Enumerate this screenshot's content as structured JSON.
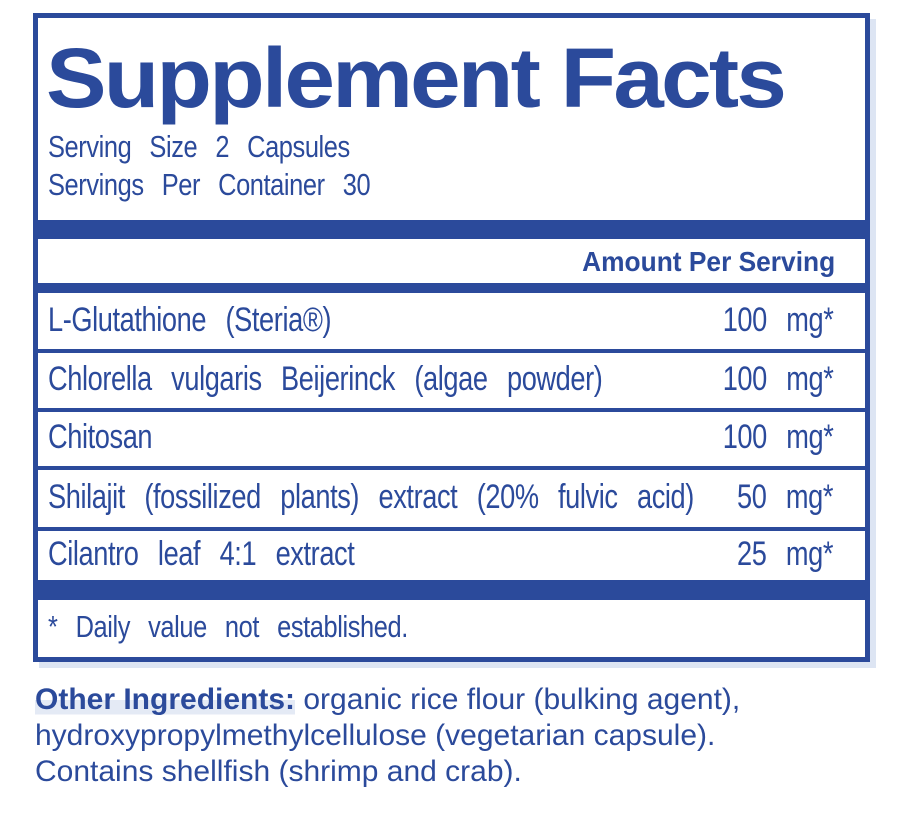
{
  "panel": {
    "title": "Supplement Facts",
    "serving_size": "Serving Size 2 Capsules",
    "servings_per_container": "Servings Per Container 30",
    "amount_header": "Amount Per Serving",
    "rows": [
      {
        "name": "L-Glutathione (Steria®)",
        "amount": "100 mg*"
      },
      {
        "name": "Chlorella vulgaris Beijerinck (algae powder)",
        "amount": "100 mg*"
      },
      {
        "name": "Chitosan",
        "amount": "100 mg*"
      },
      {
        "name": "Shilajit (fossilized plants) extract (20% fulvic acid)",
        "amount": "50 mg*"
      },
      {
        "name": "Cilantro leaf 4:1 extract",
        "amount": "25 mg*"
      }
    ],
    "footnote": "* Daily value not established."
  },
  "other_ingredients": {
    "label": "Other Ingredients:",
    "text": " organic rice flour (bulking agent),\nhydroxypropylmethylcellulose (vegetarian capsule).\nContains shellfish (shrimp and crab)."
  },
  "colors": {
    "brand_blue": "#2b4a9b",
    "highlight": "#e4eaf5",
    "shadow": "#dde5f3"
  }
}
